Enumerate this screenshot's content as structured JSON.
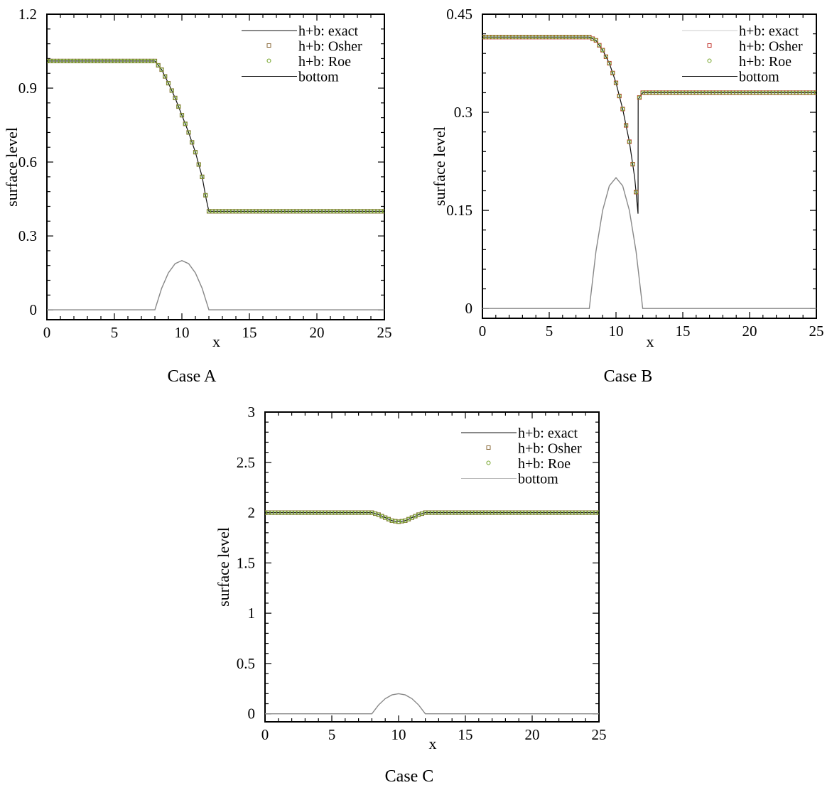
{
  "colors": {
    "exact": "#111111",
    "bottom": "#888888",
    "osher": "#8a6a3a",
    "osher_b": "#c0302a",
    "roe": "#7aa832",
    "frame": "#000000"
  },
  "chart_data": [
    {
      "type": "line",
      "caption": "Case A",
      "title": "",
      "xlabel": "x",
      "ylabel": "surface level",
      "xlim": [
        0,
        25
      ],
      "ylim": [
        -0.04,
        1.2
      ],
      "xticks": [
        0,
        5,
        10,
        15,
        20,
        25
      ],
      "xtick_labels": [
        "0",
        "5",
        "10",
        "15",
        "20",
        "25"
      ],
      "yticks": [
        0,
        0.3,
        0.6,
        0.9,
        1.2
      ],
      "ytick_labels": [
        "0",
        "0.3",
        "0.6",
        "0.9",
        "1.2"
      ],
      "legend_position": "top-right",
      "legend": [
        "h+b: exact",
        "h+b: Osher",
        "h+b: Roe",
        "bottom"
      ],
      "series": [
        {
          "name": "h+b: exact",
          "style": "line",
          "x": [
            0,
            8,
            8.5,
            9,
            9.5,
            10,
            10.5,
            11,
            11.5,
            11.8,
            12,
            25
          ],
          "y": [
            1.01,
            1.01,
            0.975,
            0.92,
            0.86,
            0.79,
            0.72,
            0.64,
            0.54,
            0.45,
            0.4,
            0.4
          ]
        },
        {
          "name": "h+b: Osher",
          "style": "markers",
          "marker": "square",
          "x": [
            0,
            8,
            8.5,
            9,
            9.5,
            10,
            10.5,
            11,
            11.5,
            11.8,
            12,
            25
          ],
          "y": [
            1.01,
            1.01,
            0.975,
            0.92,
            0.86,
            0.79,
            0.72,
            0.64,
            0.54,
            0.45,
            0.4,
            0.4
          ],
          "step": 0.25
        },
        {
          "name": "h+b: Roe",
          "style": "markers",
          "marker": "circle",
          "x": [
            0,
            8,
            8.5,
            9,
            9.5,
            10,
            10.5,
            11,
            11.5,
            11.8,
            12,
            25
          ],
          "y": [
            1.01,
            1.01,
            0.975,
            0.92,
            0.86,
            0.79,
            0.72,
            0.64,
            0.54,
            0.45,
            0.4,
            0.4
          ],
          "step": 0.25
        },
        {
          "name": "bottom",
          "style": "line",
          "x": [
            0,
            8,
            8.5,
            9,
            9.5,
            10,
            10.5,
            11,
            11.5,
            12,
            25
          ],
          "y": [
            0,
            0,
            0.0875,
            0.15,
            0.1875,
            0.2,
            0.1875,
            0.15,
            0.0875,
            0,
            0
          ]
        }
      ]
    },
    {
      "type": "line",
      "caption": "Case B",
      "title": "",
      "xlabel": "x",
      "ylabel": "surface level",
      "xlim": [
        0,
        25
      ],
      "ylim": [
        -0.015,
        0.45
      ],
      "xticks": [
        0,
        5,
        10,
        15,
        20,
        25
      ],
      "xtick_labels": [
        "0",
        "5",
        "10",
        "15",
        "20",
        "25"
      ],
      "yticks": [
        0,
        0.15,
        0.3,
        0.45
      ],
      "ytick_labels": [
        "0",
        "0.15",
        "0.3",
        "0.45"
      ],
      "legend_position": "top-right",
      "legend": [
        "h+b: exact",
        "h+b: Osher",
        "h+b: Roe",
        "bottom"
      ],
      "series": [
        {
          "name": "h+b: exact",
          "style": "line",
          "x": [
            0,
            8,
            8.5,
            9,
            9.5,
            10,
            10.5,
            11,
            11.4,
            11.65,
            11.66,
            12,
            25
          ],
          "y": [
            0.415,
            0.415,
            0.41,
            0.395,
            0.375,
            0.345,
            0.305,
            0.255,
            0.2,
            0.145,
            0.32,
            0.33,
            0.33
          ]
        },
        {
          "name": "h+b: Osher",
          "style": "markers",
          "marker": "square",
          "x": [
            0,
            8,
            8.5,
            9,
            9.5,
            10,
            10.5,
            11,
            11.4,
            11.65,
            11.66,
            12,
            25
          ],
          "y": [
            0.415,
            0.415,
            0.41,
            0.395,
            0.375,
            0.345,
            0.305,
            0.255,
            0.2,
            0.145,
            0.32,
            0.33,
            0.33
          ],
          "step": 0.25
        },
        {
          "name": "h+b: Roe",
          "style": "markers",
          "marker": "circle",
          "x": [
            0,
            8,
            8.5,
            9,
            9.5,
            10,
            10.5,
            11,
            11.4,
            11.65,
            11.66,
            12,
            25
          ],
          "y": [
            0.415,
            0.415,
            0.41,
            0.395,
            0.375,
            0.345,
            0.305,
            0.255,
            0.2,
            0.145,
            0.32,
            0.33,
            0.33
          ],
          "step": 0.25
        },
        {
          "name": "bottom",
          "style": "line",
          "x": [
            0,
            8,
            8.5,
            9,
            9.5,
            10,
            10.5,
            11,
            11.5,
            12,
            25
          ],
          "y": [
            0,
            0,
            0.0875,
            0.15,
            0.1875,
            0.2,
            0.1875,
            0.15,
            0.0875,
            0,
            0
          ]
        }
      ]
    },
    {
      "type": "line",
      "caption": "Case C",
      "title": "",
      "xlabel": "x",
      "ylabel": "surface level",
      "xlim": [
        0,
        25
      ],
      "ylim": [
        -0.08,
        3
      ],
      "xticks": [
        0,
        5,
        10,
        15,
        20,
        25
      ],
      "xtick_labels": [
        "0",
        "5",
        "10",
        "15",
        "20",
        "25"
      ],
      "yticks": [
        0,
        0.5,
        1,
        1.5,
        2,
        2.5,
        3
      ],
      "ytick_labels": [
        "0",
        "0.5",
        "1",
        "1.5",
        "2",
        "2.5",
        "3"
      ],
      "legend_position": "top-right",
      "legend": [
        "h+b: exact",
        "h+b: Osher",
        "h+b: Roe",
        "bottom"
      ],
      "series": [
        {
          "name": "h+b: exact",
          "style": "line",
          "x": [
            0,
            8,
            8.5,
            9,
            9.5,
            10,
            10.5,
            11,
            11.5,
            12,
            25
          ],
          "y": [
            2,
            2,
            1.98,
            1.95,
            1.92,
            1.91,
            1.92,
            1.95,
            1.98,
            2,
            2
          ]
        },
        {
          "name": "h+b: Osher",
          "style": "markers",
          "marker": "square",
          "x": [
            0,
            8,
            8.5,
            9,
            9.5,
            10,
            10.5,
            11,
            11.5,
            12,
            25
          ],
          "y": [
            2,
            2,
            1.98,
            1.95,
            1.92,
            1.91,
            1.92,
            1.95,
            1.98,
            2,
            2
          ],
          "step": 0.25
        },
        {
          "name": "h+b: Roe",
          "style": "markers",
          "marker": "circle",
          "x": [
            0,
            8,
            8.5,
            9,
            9.5,
            10,
            10.5,
            11,
            11.5,
            12,
            25
          ],
          "y": [
            2,
            2,
            1.98,
            1.95,
            1.92,
            1.91,
            1.92,
            1.95,
            1.98,
            2,
            2
          ],
          "step": 0.25
        },
        {
          "name": "bottom",
          "style": "line",
          "x": [
            0,
            8,
            8.5,
            9,
            9.5,
            10,
            10.5,
            11,
            11.5,
            12,
            25
          ],
          "y": [
            0,
            0,
            0.0875,
            0.15,
            0.1875,
            0.2,
            0.1875,
            0.15,
            0.0875,
            0,
            0
          ]
        }
      ]
    }
  ]
}
